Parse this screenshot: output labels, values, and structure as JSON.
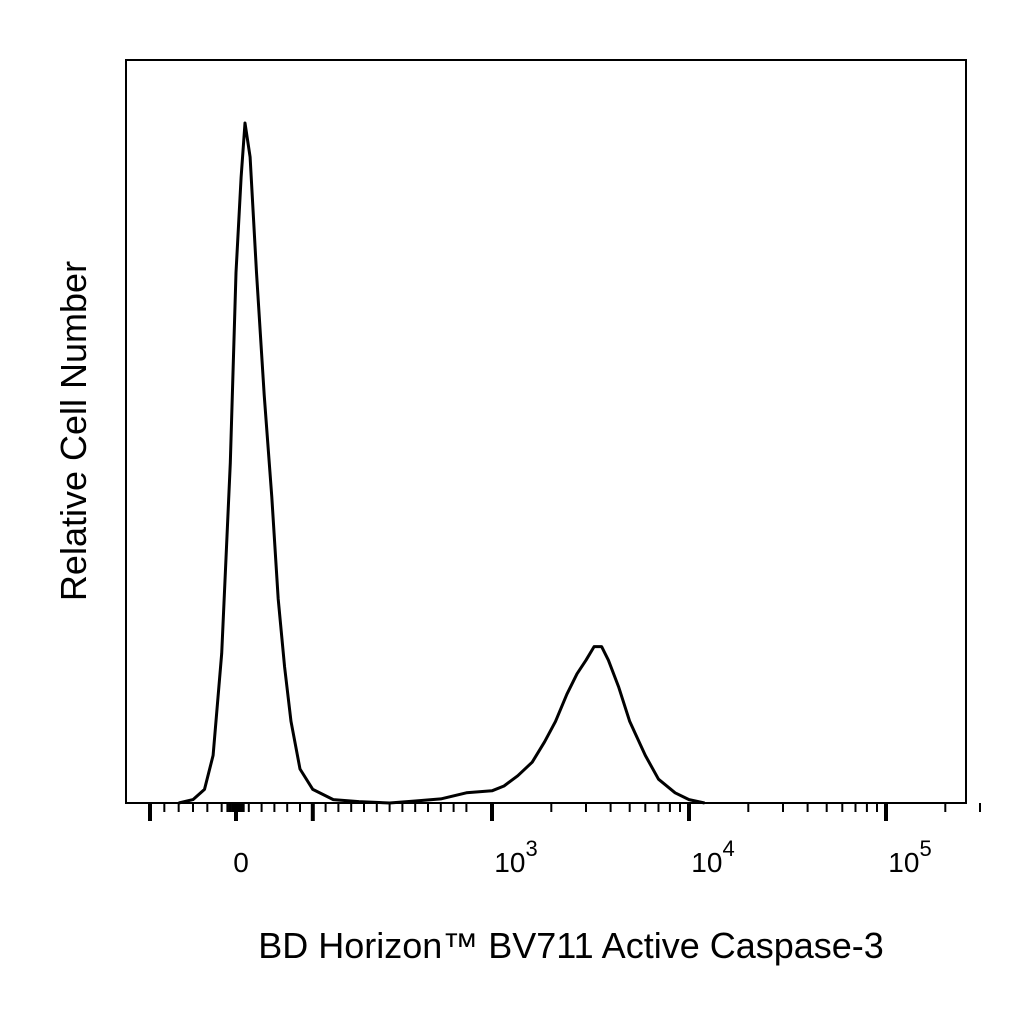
{
  "chart_data": {
    "type": "line",
    "chart_kind": "flow cytometry histogram",
    "xlabel": "BD Horizon™ BV711 Active Caspase-3",
    "ylabel": "Relative Cell Number",
    "x_scale": "biexponential",
    "x_ticks": [
      {
        "value": 0,
        "base": "0",
        "exp": ""
      },
      {
        "value": 1000,
        "base": "10",
        "exp": "3"
      },
      {
        "value": 10000,
        "base": "10",
        "exp": "4"
      },
      {
        "value": 100000,
        "base": "10",
        "exp": "5"
      }
    ],
    "ylim": [
      0,
      100
    ],
    "grid": false,
    "legend": "none",
    "line_color": "#000000",
    "series": [
      {
        "points": [
          [
            -200,
            0
          ],
          [
            -150,
            0.5
          ],
          [
            -110,
            2
          ],
          [
            -80,
            7
          ],
          [
            -50,
            22
          ],
          [
            -20,
            50
          ],
          [
            0,
            78
          ],
          [
            20,
            92
          ],
          [
            35,
            100
          ],
          [
            55,
            95
          ],
          [
            80,
            78
          ],
          [
            110,
            60
          ],
          [
            140,
            45
          ],
          [
            165,
            30
          ],
          [
            190,
            20
          ],
          [
            215,
            12
          ],
          [
            250,
            5
          ],
          [
            300,
            2
          ],
          [
            380,
            0.5
          ],
          [
            480,
            0.2
          ],
          [
            600,
            0
          ],
          [
            700,
            0.3
          ],
          [
            800,
            0.6
          ],
          [
            900,
            1.5
          ],
          [
            1000,
            1.8
          ],
          [
            1150,
            2.5
          ],
          [
            1350,
            4
          ],
          [
            1600,
            6
          ],
          [
            1850,
            9
          ],
          [
            2100,
            12
          ],
          [
            2400,
            16
          ],
          [
            2700,
            19
          ],
          [
            3000,
            21
          ],
          [
            3300,
            23
          ],
          [
            3600,
            23
          ],
          [
            3900,
            21
          ],
          [
            4400,
            17
          ],
          [
            5000,
            12
          ],
          [
            6000,
            7
          ],
          [
            7000,
            3.5
          ],
          [
            8500,
            1.5
          ],
          [
            10000,
            0.5
          ],
          [
            12000,
            0
          ]
        ]
      }
    ]
  }
}
